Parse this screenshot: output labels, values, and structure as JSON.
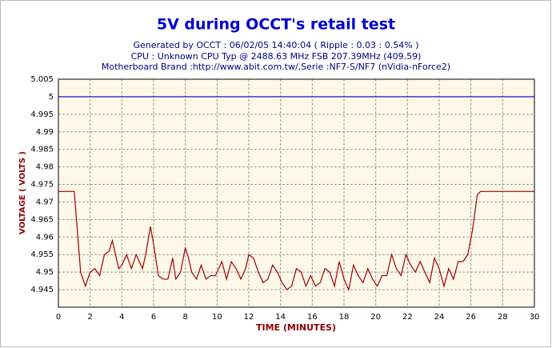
{
  "chart_data": {
    "type": "line",
    "title": "5V during OCCT's retail test",
    "subtitle_lines": [
      "Generated by OCCT : 06/02/05 14:40:04 ( Ripple : 0.03 : 0.54% )",
      "CPU : Unknown CPU Typ @ 2488.63 MHz FSB 207.39MHz (409.59)",
      "Motherboard Brand :http://www.abit.com.tw/,Serie :NF7-S/NF7 (nVidia-nForce2)"
    ],
    "x_label": "TIME (MINUTES)",
    "y_label": "VOLTAGE ( VOLTS )",
    "xlim": [
      0,
      30
    ],
    "xticks": [
      0,
      2,
      4,
      6,
      8,
      10,
      12,
      14,
      16,
      18,
      20,
      22,
      24,
      26,
      28,
      30
    ],
    "ylim": [
      4.94,
      5.005
    ],
    "yticks": [
      5.005,
      5,
      4.995,
      4.99,
      4.985,
      4.98,
      4.975,
      4.97,
      4.965,
      4.96,
      4.955,
      4.95,
      4.945
    ],
    "grid": true,
    "series": [
      {
        "color": "#0000cc",
        "x": [
          0,
          30
        ],
        "values": [
          5,
          5
        ]
      },
      {
        "color": "#a00000",
        "x": [
          0,
          1.0,
          1.4,
          1.7,
          2.0,
          2.3,
          2.6,
          2.9,
          3.2,
          3.4,
          3.6,
          3.8,
          4.0,
          4.3,
          4.6,
          4.9,
          5.1,
          5.3,
          5.5,
          5.8,
          6.0,
          6.3,
          6.6,
          6.9,
          7.2,
          7.4,
          7.7,
          8.0,
          8.2,
          8.4,
          8.7,
          9.0,
          9.3,
          9.6,
          9.9,
          10.3,
          10.6,
          10.9,
          11.2,
          11.5,
          11.8,
          12.0,
          12.3,
          12.6,
          12.9,
          13.2,
          13.5,
          13.8,
          14.1,
          14.4,
          14.7,
          15.0,
          15.3,
          15.6,
          15.9,
          16.2,
          16.5,
          16.8,
          17.1,
          17.4,
          17.7,
          18.0,
          18.3,
          18.6,
          18.9,
          19.2,
          19.5,
          19.8,
          20.1,
          20.4,
          20.7,
          21.0,
          21.3,
          21.6,
          21.9,
          22.2,
          22.5,
          22.8,
          23.1,
          23.4,
          23.7,
          24.0,
          24.3,
          24.6,
          24.9,
          25.2,
          25.5,
          25.8,
          26.1,
          26.4,
          26.6,
          30
        ],
        "values": [
          4.973,
          4.973,
          4.95,
          4.946,
          4.95,
          4.951,
          4.949,
          4.955,
          4.956,
          4.959,
          4.955,
          4.951,
          4.952,
          4.955,
          4.951,
          4.955,
          4.953,
          4.951,
          4.955,
          4.963,
          4.958,
          4.949,
          4.948,
          4.948,
          4.954,
          4.948,
          4.95,
          4.957,
          4.954,
          4.95,
          4.948,
          4.952,
          4.948,
          4.949,
          4.949,
          4.953,
          4.948,
          4.953,
          4.951,
          4.948,
          4.951,
          4.955,
          4.954,
          4.95,
          4.947,
          4.948,
          4.952,
          4.95,
          4.947,
          4.945,
          4.946,
          4.951,
          4.95,
          4.946,
          4.949,
          4.946,
          4.947,
          4.951,
          4.95,
          4.946,
          4.953,
          4.948,
          4.945,
          4.952,
          4.949,
          4.947,
          4.951,
          4.948,
          4.946,
          4.949,
          4.949,
          4.955,
          4.951,
          4.949,
          4.955,
          4.952,
          4.95,
          4.953,
          4.95,
          4.947,
          4.954,
          4.951,
          4.946,
          4.951,
          4.948,
          4.953,
          4.953,
          4.955,
          4.962,
          4.972,
          4.973,
          4.973
        ]
      }
    ]
  }
}
